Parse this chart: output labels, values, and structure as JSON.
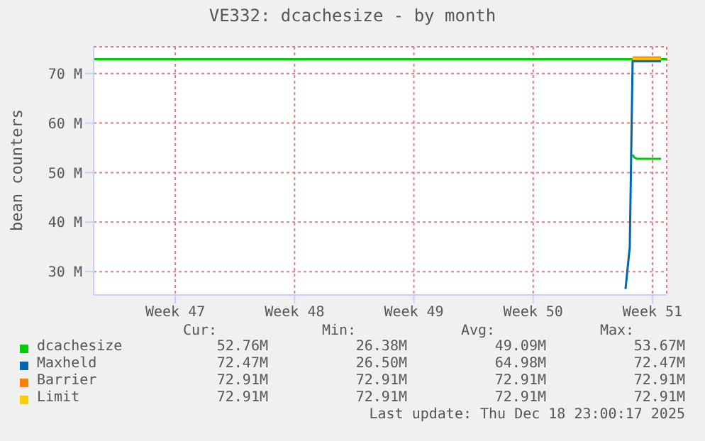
{
  "chart_data": {
    "type": "line",
    "title": "VE332: dcachesize - by month",
    "ylabel": "bean counters",
    "xlim": [
      "2025-11-12T05:00",
      "2025-12-15T20:00"
    ],
    "xticks": [
      {
        "value": "2025-11-17",
        "label": "Week 47"
      },
      {
        "value": "2025-11-24",
        "label": "Week 48"
      },
      {
        "value": "2025-12-01",
        "label": "Week 49"
      },
      {
        "value": "2025-12-08",
        "label": "Week 50"
      },
      {
        "value": "2025-12-15",
        "label": "Week 51"
      }
    ],
    "ylim": [
      25.3,
      75.4
    ],
    "yticks": [
      {
        "value": 30,
        "label": "30 M"
      },
      {
        "value": 40,
        "label": "40 M"
      },
      {
        "value": 50,
        "label": "50 M"
      },
      {
        "value": 60,
        "label": "60 M"
      },
      {
        "value": 70,
        "label": "70 M"
      }
    ],
    "grid": true,
    "legend": "bottom",
    "ref_lines": [
      {
        "axis": "y",
        "value": 72.9,
        "color": "#00cc00"
      }
    ],
    "series": [
      {
        "name": "dcachesize",
        "color": "#00cc00",
        "x": [
          "2025-12-13T20:00",
          "2025-12-13T22:00",
          "2025-12-14T02:00",
          "2025-12-15T12:00"
        ],
        "values": [
          53.6,
          53.1,
          52.8,
          52.8
        ]
      },
      {
        "name": "Maxheld",
        "color": "#0066b3",
        "x": [
          "2025-12-13T10:00",
          "2025-12-13T16:00",
          "2025-12-13T20:00",
          "2025-12-15T12:00"
        ],
        "values": [
          26.5,
          35,
          72.5,
          72.5
        ]
      },
      {
        "name": "Barrier",
        "color": "#ff8000",
        "x": [
          "2025-12-13T20:00",
          "2025-12-15T12:00"
        ],
        "values": [
          72.9,
          72.9
        ]
      },
      {
        "name": "Limit",
        "color": "#ffcc00",
        "x": [
          "2025-12-13T20:00",
          "2025-12-15T12:00"
        ],
        "values": [
          72.9,
          72.9
        ]
      }
    ],
    "annotations": [
      "Cur:",
      "Min:",
      "Avg:",
      "Max:",
      "52.76M",
      "26.38M",
      "49.09M",
      "53.67M",
      "72.47M",
      "26.50M",
      "64.98M",
      "72.47M",
      "72.91M",
      "72.91M",
      "72.91M",
      "72.91M",
      "72.91M",
      "72.91M",
      "72.91M",
      "72.91M",
      "Last update: Thu Dec 18 23:00:17 2025"
    ]
  }
}
